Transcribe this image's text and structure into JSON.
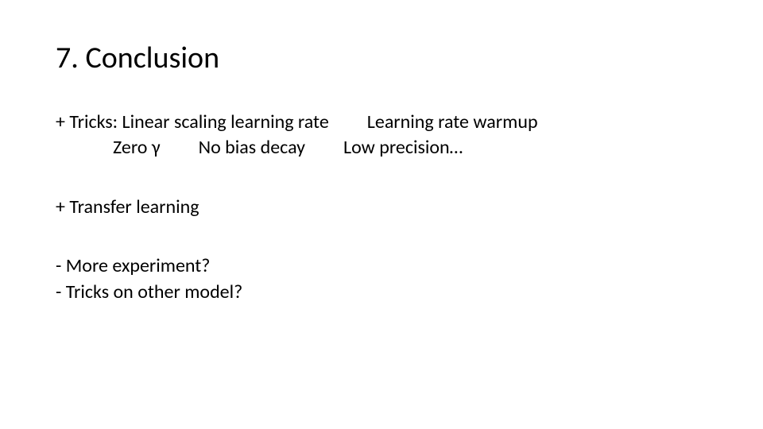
{
  "slide": {
    "title": "7. Conclusion",
    "title_fontsize": 38,
    "body_fontsize": 24,
    "text_color": "#000000",
    "background_color": "#ffffff",
    "blocks": [
      {
        "lines": [
          {
            "text": "+ Tricks: Linear scaling learning rate  Learning rate warmup",
            "indent": false
          },
          {
            "text": "Zero γ  No bias decay  Low precision…",
            "indent": true
          }
        ]
      },
      {
        "lines": [
          {
            "text": "+ Transfer learning",
            "indent": false
          }
        ]
      },
      {
        "lines": [
          {
            "text": "- More experiment?",
            "indent": false
          },
          {
            "text": "- Tricks on other model?",
            "indent": false
          }
        ]
      }
    ]
  }
}
